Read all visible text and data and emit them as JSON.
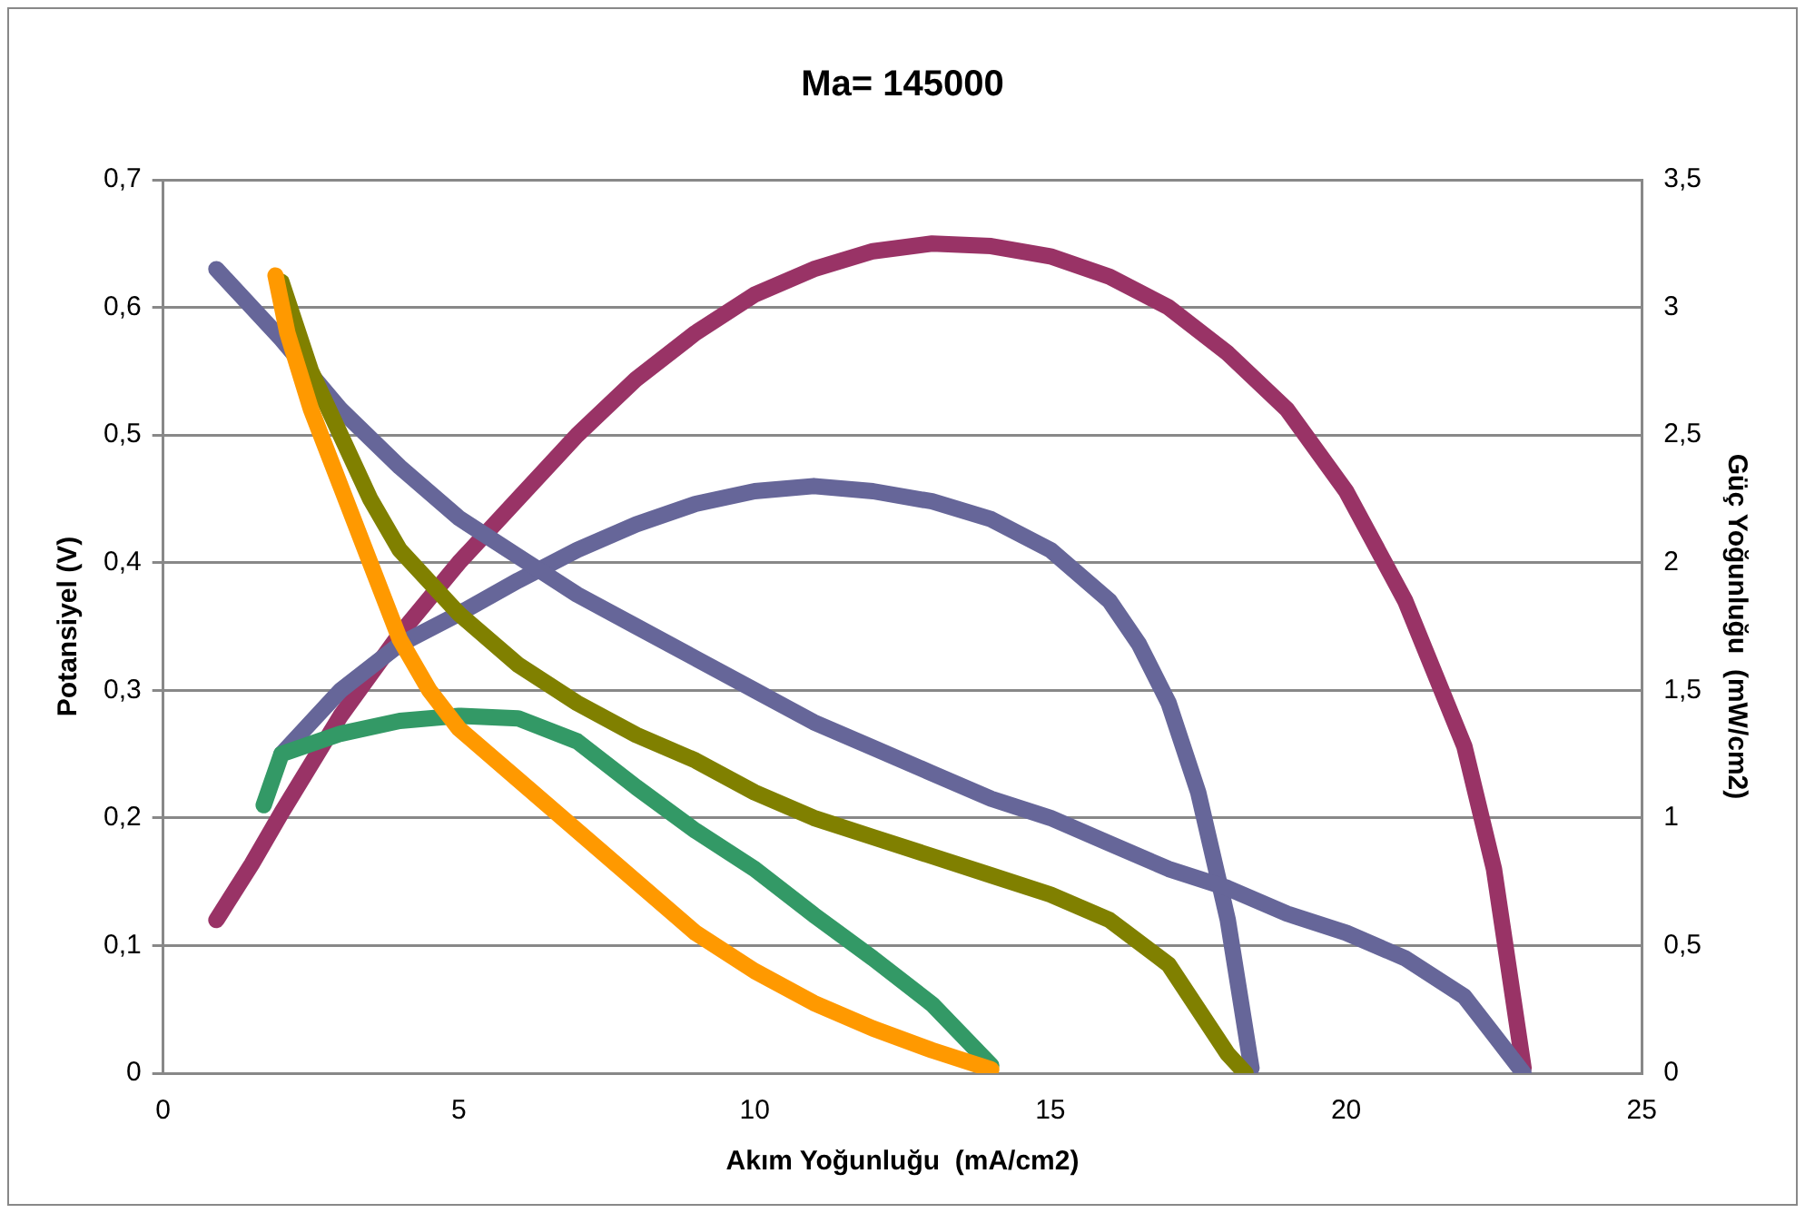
{
  "chart_data": {
    "type": "line",
    "title": "Ma= 145000",
    "xlabel": "Akım Yoğunluğu  (mA/cm2)",
    "ylabel": "Potansiyel (V)",
    "y2label": "Güç Yoğunluğu  (mW/cm2)",
    "xlim": [
      0,
      25
    ],
    "xticks": [
      0,
      5,
      10,
      15,
      20,
      25
    ],
    "ylim": [
      0,
      0.7
    ],
    "yticks": [
      {
        "value": 0,
        "label": "0"
      },
      {
        "value": 0.1,
        "label": "0,1"
      },
      {
        "value": 0.2,
        "label": "0,2"
      },
      {
        "value": 0.3,
        "label": "0,3"
      },
      {
        "value": 0.4,
        "label": "0,4"
      },
      {
        "value": 0.5,
        "label": "0,5"
      },
      {
        "value": 0.6,
        "label": "0,6"
      },
      {
        "value": 0.7,
        "label": "0,7"
      }
    ],
    "y2lim": [
      0,
      3.5
    ],
    "y2ticks": [
      {
        "value": 0,
        "label": "0"
      },
      {
        "value": 0.5,
        "label": "0,5"
      },
      {
        "value": 1,
        "label": "1"
      },
      {
        "value": 1.5,
        "label": "1,5"
      },
      {
        "value": 2,
        "label": "2"
      },
      {
        "value": 2.5,
        "label": "2,5"
      },
      {
        "value": 3,
        "label": "3"
      },
      {
        "value": 3.5,
        "label": "3,5"
      }
    ],
    "grid": "y",
    "legend": false,
    "marker": "none",
    "line_style": "solid",
    "series": [
      {
        "color": "#ff9900",
        "x": [
          1.9,
          2.1,
          2.5,
          3,
          3.5,
          4,
          4.5,
          5,
          6,
          7,
          8,
          9,
          10,
          11,
          12,
          13,
          14
        ],
        "values": [
          0.625,
          0.58,
          0.52,
          0.46,
          0.4,
          0.34,
          0.3,
          0.27,
          0.23,
          0.19,
          0.15,
          0.11,
          0.08,
          0.055,
          0.035,
          0.018,
          0.003
        ]
      },
      {
        "color": "#808000",
        "x": [
          2,
          2.5,
          3,
          3.5,
          4,
          5,
          6,
          7,
          8,
          9,
          10,
          11,
          12,
          13,
          14,
          15,
          16,
          17,
          17.5,
          18,
          18.3
        ],
        "values": [
          0.62,
          0.55,
          0.5,
          0.45,
          0.41,
          0.36,
          0.32,
          0.29,
          0.265,
          0.245,
          0.22,
          0.2,
          0.185,
          0.17,
          0.155,
          0.14,
          0.12,
          0.085,
          0.05,
          0.015,
          0
        ]
      },
      {
        "color": "#666699",
        "x": [
          0.9,
          2,
          3,
          4,
          5,
          6,
          7,
          8,
          9,
          10,
          11,
          12,
          13,
          14,
          15,
          16,
          17,
          18,
          19,
          20,
          21,
          22,
          22.5,
          23
        ],
        "values": [
          0.63,
          0.575,
          0.52,
          0.475,
          0.435,
          0.405,
          0.375,
          0.35,
          0.325,
          0.3,
          0.275,
          0.255,
          0.235,
          0.215,
          0.2,
          0.18,
          0.16,
          0.145,
          0.125,
          0.11,
          0.09,
          0.06,
          0.03,
          0
        ]
      },
      {
        "color": "#339966",
        "axis": "y2",
        "x": [
          1.7,
          2,
          3,
          4,
          5,
          6,
          7,
          8,
          9,
          10,
          11,
          12,
          13,
          13.5,
          14
        ],
        "values": [
          1.05,
          1.25,
          1.33,
          1.38,
          1.4,
          1.39,
          1.3,
          1.12,
          0.95,
          0.8,
          0.62,
          0.45,
          0.27,
          0.15,
          0.03
        ]
      },
      {
        "color": "#666699",
        "axis": "y2",
        "x": [
          2,
          3,
          4,
          5,
          6,
          7,
          8,
          9,
          10,
          11,
          12,
          13,
          14,
          15,
          16,
          16.5,
          17,
          17.5,
          18,
          18.4
        ],
        "values": [
          1.25,
          1.5,
          1.68,
          1.8,
          1.93,
          2.05,
          2.15,
          2.23,
          2.28,
          2.3,
          2.28,
          2.24,
          2.17,
          2.05,
          1.85,
          1.68,
          1.45,
          1.1,
          0.6,
          0.02
        ]
      },
      {
        "color": "#993366",
        "axis": "y2",
        "x": [
          0.9,
          1.5,
          2,
          3,
          4,
          5,
          6,
          7,
          8,
          9,
          10,
          11,
          12,
          13,
          14,
          15,
          16,
          17,
          18,
          19,
          20,
          21,
          22,
          22.5,
          23
        ],
        "values": [
          0.6,
          0.82,
          1.02,
          1.4,
          1.72,
          2,
          2.25,
          2.5,
          2.72,
          2.9,
          3.05,
          3.15,
          3.22,
          3.25,
          3.24,
          3.2,
          3.12,
          3,
          2.82,
          2.6,
          2.28,
          1.85,
          1.28,
          0.8,
          0.02
        ]
      }
    ]
  }
}
